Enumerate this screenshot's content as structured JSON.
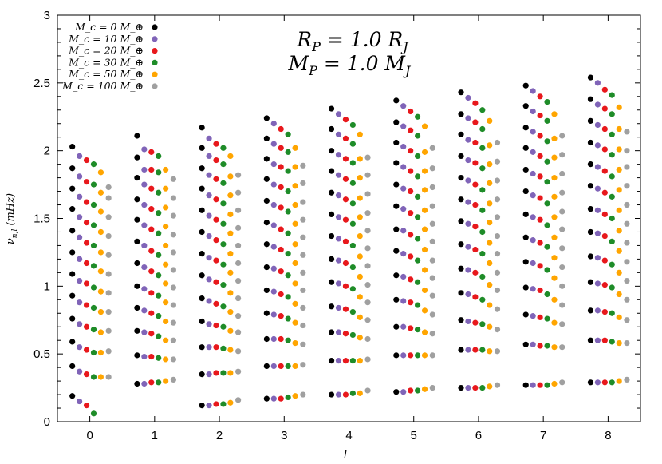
{
  "chart_data": {
    "type": "scatter",
    "title": "",
    "xlabel": "l",
    "ylabel": "ν_{n,l} (mHz)",
    "xlim": [
      -0.5,
      8.5
    ],
    "ylim": [
      0,
      3
    ],
    "x_ticks": [
      "0",
      "1",
      "2",
      "3",
      "4",
      "5",
      "6",
      "7",
      "8"
    ],
    "y_ticks": [
      "0",
      "0.5",
      "1",
      "1.5",
      "2",
      "2.5",
      "3"
    ],
    "grid": false,
    "legend_position": "top-left",
    "annotations": [
      "R_P = 1.0 R_J",
      "M_P = 1.0 M_J"
    ],
    "series": [
      {
        "name": "M_c = 0 M_⊕",
        "color": "#000000",
        "x_offset": -0.27,
        "values": [
          [
            0.19,
            0.41,
            0.59,
            0.76,
            0.93,
            1.09,
            1.25,
            1.41,
            1.57,
            1.72,
            1.87,
            2.03
          ],
          [
            0.28,
            0.49,
            0.67,
            0.84,
            1.0,
            1.17,
            1.33,
            1.49,
            1.64,
            1.8,
            1.95,
            2.11
          ],
          [
            0.12,
            0.35,
            0.55,
            0.74,
            0.91,
            1.08,
            1.24,
            1.4,
            1.56,
            1.72,
            1.87,
            2.02,
            2.17
          ],
          [
            0.17,
            0.41,
            0.61,
            0.8,
            0.97,
            1.14,
            1.31,
            1.47,
            1.63,
            1.79,
            1.94,
            2.09,
            2.24
          ],
          [
            0.2,
            0.45,
            0.66,
            0.85,
            1.03,
            1.2,
            1.37,
            1.53,
            1.69,
            1.85,
            2.0,
            2.16,
            2.31
          ],
          [
            0.22,
            0.49,
            0.7,
            0.9,
            1.08,
            1.26,
            1.42,
            1.59,
            1.75,
            1.91,
            2.06,
            2.21,
            2.37
          ],
          [
            0.25,
            0.53,
            0.75,
            0.95,
            1.13,
            1.31,
            1.48,
            1.64,
            1.8,
            1.96,
            2.12,
            2.27,
            2.43
          ],
          [
            0.27,
            0.57,
            0.79,
            0.99,
            1.18,
            1.36,
            1.53,
            1.7,
            1.86,
            2.02,
            2.17,
            2.33,
            2.48
          ],
          [
            0.29,
            0.6,
            0.82,
            1.03,
            1.22,
            1.4,
            1.57,
            1.74,
            1.9,
            2.06,
            2.22,
            2.38,
            2.54
          ]
        ]
      },
      {
        "name": "M_c = 10 M_⊕",
        "color": "#8064b8",
        "x_offset": -0.16,
        "values": [
          [
            0.15,
            0.37,
            0.55,
            0.72,
            0.88,
            1.04,
            1.2,
            1.36,
            1.51,
            1.66,
            1.81,
            1.96
          ],
          [
            0.28,
            0.48,
            0.66,
            0.82,
            0.98,
            1.14,
            1.3,
            1.45,
            1.6,
            1.75,
            1.86,
            2.01
          ],
          [
            0.12,
            0.35,
            0.55,
            0.72,
            0.89,
            1.05,
            1.21,
            1.37,
            1.52,
            1.67,
            1.82,
            1.96,
            2.09
          ],
          [
            0.17,
            0.41,
            0.61,
            0.79,
            0.96,
            1.13,
            1.29,
            1.45,
            1.6,
            1.75,
            1.9,
            2.05,
            2.2
          ],
          [
            0.2,
            0.45,
            0.66,
            0.84,
            1.02,
            1.19,
            1.35,
            1.51,
            1.67,
            1.82,
            1.97,
            2.12,
            2.27
          ],
          [
            0.22,
            0.49,
            0.7,
            0.89,
            1.07,
            1.24,
            1.41,
            1.57,
            1.72,
            1.88,
            2.03,
            2.18,
            2.33
          ],
          [
            0.25,
            0.53,
            0.74,
            0.94,
            1.12,
            1.29,
            1.46,
            1.62,
            1.78,
            1.93,
            2.08,
            2.24,
            2.39
          ],
          [
            0.27,
            0.57,
            0.78,
            0.98,
            1.17,
            1.34,
            1.51,
            1.67,
            1.83,
            1.99,
            2.14,
            2.29,
            2.44
          ],
          [
            0.29,
            0.6,
            0.82,
            1.02,
            1.21,
            1.39,
            1.56,
            1.72,
            1.88,
            2.04,
            2.19,
            2.34,
            2.5
          ]
        ]
      },
      {
        "name": "M_c = 20 M_⊕",
        "color": "#e8181c",
        "x_offset": -0.05,
        "values": [
          [
            0.12,
            0.35,
            0.53,
            0.7,
            0.86,
            1.02,
            1.17,
            1.32,
            1.47,
            1.62,
            1.77,
            1.93
          ],
          [
            0.29,
            0.48,
            0.65,
            0.8,
            0.95,
            1.11,
            1.26,
            1.42,
            1.57,
            1.72,
            1.86,
            1.99
          ],
          [
            0.13,
            0.36,
            0.55,
            0.71,
            0.87,
            1.03,
            1.19,
            1.34,
            1.49,
            1.64,
            1.79,
            1.93,
            2.05
          ],
          [
            0.17,
            0.41,
            0.61,
            0.78,
            0.94,
            1.11,
            1.27,
            1.42,
            1.58,
            1.73,
            1.88,
            2.02,
            2.16
          ],
          [
            0.2,
            0.45,
            0.65,
            0.83,
            1.0,
            1.17,
            1.33,
            1.49,
            1.64,
            1.79,
            1.94,
            2.09,
            2.23
          ],
          [
            0.23,
            0.49,
            0.69,
            0.88,
            1.05,
            1.22,
            1.38,
            1.54,
            1.7,
            1.85,
            2.0,
            2.15,
            2.29
          ],
          [
            0.25,
            0.53,
            0.73,
            0.92,
            1.1,
            1.27,
            1.44,
            1.6,
            1.75,
            1.91,
            2.06,
            2.21,
            2.35
          ],
          [
            0.27,
            0.56,
            0.77,
            0.97,
            1.15,
            1.32,
            1.49,
            1.65,
            1.81,
            1.96,
            2.11,
            2.26,
            2.4
          ],
          [
            0.29,
            0.6,
            0.81,
            1.01,
            1.19,
            1.37,
            1.53,
            1.69,
            1.85,
            2.01,
            2.16,
            2.31,
            2.45
          ]
        ]
      },
      {
        "name": "M_c = 30 M_⊕",
        "color": "#1e8c28",
        "x_offset": 0.06,
        "values": [
          [
            0.06,
            0.33,
            0.51,
            0.68,
            0.84,
            0.99,
            1.15,
            1.3,
            1.45,
            1.6,
            1.75,
            1.9
          ],
          [
            0.29,
            0.47,
            0.63,
            0.78,
            0.93,
            1.08,
            1.23,
            1.39,
            1.54,
            1.69,
            1.84,
            1.96
          ],
          [
            0.13,
            0.36,
            0.54,
            0.7,
            0.85,
            1.01,
            1.16,
            1.31,
            1.46,
            1.61,
            1.76,
            1.9,
            2.02
          ],
          [
            0.18,
            0.41,
            0.6,
            0.76,
            0.92,
            1.08,
            1.24,
            1.39,
            1.55,
            1.7,
            1.85,
            1.99,
            2.12
          ],
          [
            0.21,
            0.45,
            0.64,
            0.81,
            0.98,
            1.14,
            1.3,
            1.46,
            1.61,
            1.76,
            1.91,
            2.05,
            2.19
          ],
          [
            0.23,
            0.49,
            0.68,
            0.86,
            1.03,
            1.19,
            1.35,
            1.51,
            1.66,
            1.81,
            1.96,
            2.11,
            2.25
          ],
          [
            0.25,
            0.53,
            0.72,
            0.9,
            1.07,
            1.24,
            1.4,
            1.56,
            1.71,
            1.87,
            2.02,
            2.16,
            2.3
          ],
          [
            0.27,
            0.56,
            0.76,
            0.94,
            1.12,
            1.29,
            1.45,
            1.61,
            1.77,
            1.92,
            2.07,
            2.22,
            2.36
          ],
          [
            0.29,
            0.59,
            0.8,
            0.99,
            1.16,
            1.33,
            1.5,
            1.66,
            1.81,
            1.97,
            2.12,
            2.27,
            2.41
          ]
        ]
      },
      {
        "name": "M_c = 50 M_⊕",
        "color": "#ffa500",
        "x_offset": 0.17,
        "values": [
          [
            0.33,
            0.51,
            0.66,
            0.81,
            0.96,
            1.11,
            1.25,
            1.4,
            1.55,
            1.69,
            1.84
          ],
          [
            0.3,
            0.46,
            0.6,
            0.74,
            0.88,
            1.02,
            1.16,
            1.3,
            1.44,
            1.58,
            1.72,
            1.86
          ],
          [
            0.14,
            0.36,
            0.53,
            0.67,
            0.81,
            0.95,
            1.1,
            1.24,
            1.39,
            1.53,
            1.67,
            1.81,
            1.96
          ],
          [
            0.19,
            0.41,
            0.58,
            0.73,
            0.87,
            1.02,
            1.17,
            1.31,
            1.46,
            1.6,
            1.74,
            1.88,
            2.02
          ],
          [
            0.21,
            0.45,
            0.62,
            0.77,
            0.92,
            1.07,
            1.22,
            1.37,
            1.51,
            1.65,
            1.8,
            1.94,
            2.12
          ],
          [
            0.24,
            0.49,
            0.66,
            0.82,
            0.97,
            1.12,
            1.27,
            1.42,
            1.56,
            1.71,
            1.85,
            1.99,
            2.18
          ],
          [
            0.26,
            0.52,
            0.7,
            0.86,
            1.01,
            1.17,
            1.32,
            1.47,
            1.61,
            1.76,
            1.9,
            2.04,
            2.22
          ],
          [
            0.28,
            0.55,
            0.73,
            0.9,
            1.06,
            1.21,
            1.36,
            1.51,
            1.66,
            1.8,
            1.95,
            2.09,
            2.27
          ],
          [
            0.3,
            0.58,
            0.77,
            0.94,
            1.1,
            1.26,
            1.41,
            1.56,
            1.71,
            1.86,
            2.01,
            2.16,
            2.32
          ]
        ]
      },
      {
        "name": "M_c = 100 M_⊕",
        "color": "#a0a0a0",
        "x_offset": 0.29,
        "values": [
          [
            0.33,
            0.52,
            0.67,
            0.81,
            0.95,
            1.09,
            1.23,
            1.37,
            1.51,
            1.65,
            1.73
          ],
          [
            0.31,
            0.46,
            0.6,
            0.73,
            0.86,
            0.99,
            1.12,
            1.25,
            1.38,
            1.52,
            1.65,
            1.79
          ],
          [
            0.16,
            0.37,
            0.52,
            0.66,
            0.78,
            0.91,
            1.04,
            1.17,
            1.3,
            1.43,
            1.56,
            1.69,
            1.82
          ],
          [
            0.2,
            0.42,
            0.57,
            0.71,
            0.84,
            0.97,
            1.1,
            1.23,
            1.36,
            1.49,
            1.62,
            1.76,
            1.89
          ],
          [
            0.23,
            0.46,
            0.61,
            0.75,
            0.88,
            1.01,
            1.15,
            1.28,
            1.41,
            1.54,
            1.68,
            1.82,
            1.95
          ],
          [
            0.25,
            0.49,
            0.65,
            0.79,
            0.93,
            1.06,
            1.19,
            1.33,
            1.46,
            1.59,
            1.73,
            1.87,
            2.02
          ],
          [
            0.27,
            0.52,
            0.68,
            0.83,
            0.97,
            1.1,
            1.24,
            1.37,
            1.51,
            1.64,
            1.78,
            1.92,
            2.06
          ],
          [
            0.29,
            0.55,
            0.72,
            0.86,
            1.0,
            1.14,
            1.28,
            1.42,
            1.55,
            1.69,
            1.83,
            1.97,
            2.11
          ],
          [
            0.31,
            0.58,
            0.75,
            0.9,
            1.04,
            1.18,
            1.32,
            1.46,
            1.6,
            1.74,
            1.88,
            2.0,
            2.14
          ]
        ]
      }
    ]
  }
}
